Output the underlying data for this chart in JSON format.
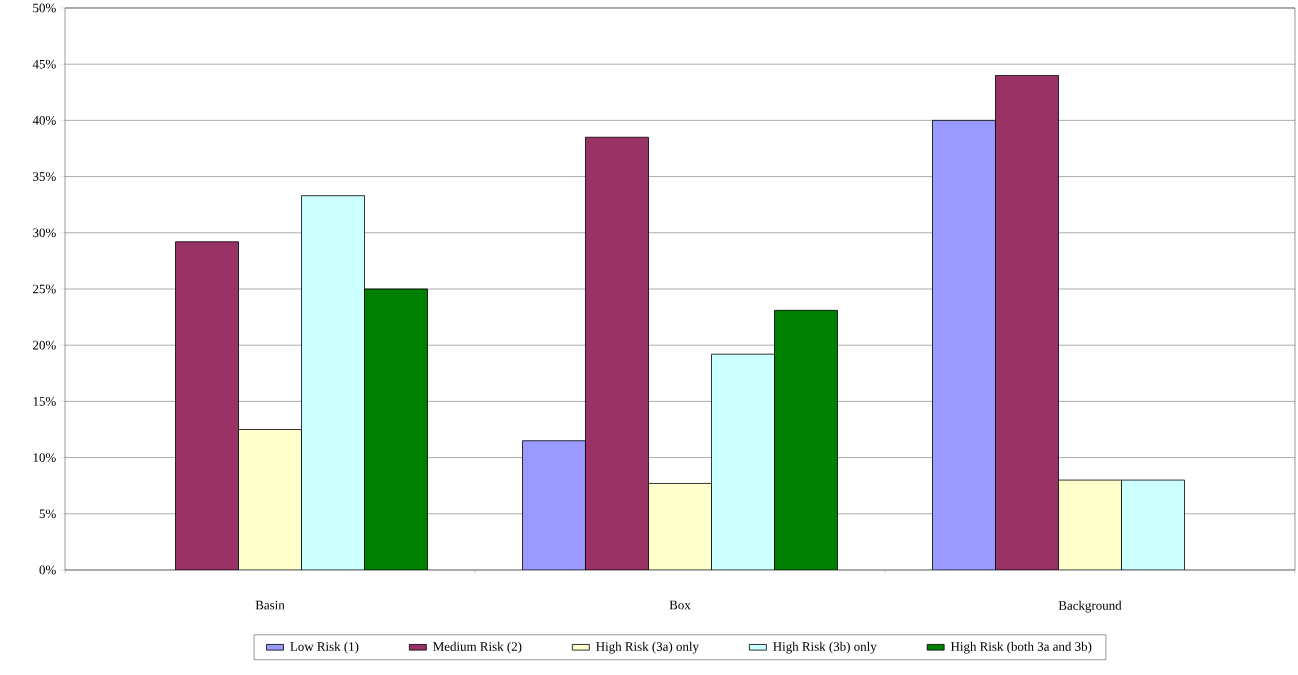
{
  "chart_data": {
    "type": "bar",
    "categories": [
      "Basin",
      "Box",
      "Background"
    ],
    "series": [
      {
        "name": "Low Risk (1)",
        "color": "#9999ff",
        "values": [
          null,
          11.5,
          40
        ]
      },
      {
        "name": "Medium Risk (2)",
        "color": "#993366",
        "values": [
          29.2,
          38.5,
          44
        ]
      },
      {
        "name": "High Risk (3a) only",
        "color": "#ffffcc",
        "values": [
          12.5,
          7.7,
          8
        ]
      },
      {
        "name": "High Risk (3b) only",
        "color": "#ccffff",
        "values": [
          33.3,
          19.2,
          8
        ]
      },
      {
        "name": "High Risk (both 3a and 3b)",
        "color": "#008000",
        "values": [
          25,
          23.1,
          null
        ]
      }
    ],
    "ylim": [
      0,
      50
    ],
    "yticks": [
      {
        "value": 0,
        "label": "0%"
      },
      {
        "value": 5,
        "label": "5%"
      },
      {
        "value": 10,
        "label": "10%"
      },
      {
        "value": 15,
        "label": "15%"
      },
      {
        "value": 20,
        "label": "20%"
      },
      {
        "value": 25,
        "label": "25%"
      },
      {
        "value": 30,
        "label": "30%"
      },
      {
        "value": 35,
        "label": "35%"
      },
      {
        "value": 40,
        "label": "40%"
      },
      {
        "value": 45,
        "label": "45%"
      },
      {
        "value": 50,
        "label": "50%"
      }
    ],
    "grid": "y",
    "legend": "bottom"
  }
}
